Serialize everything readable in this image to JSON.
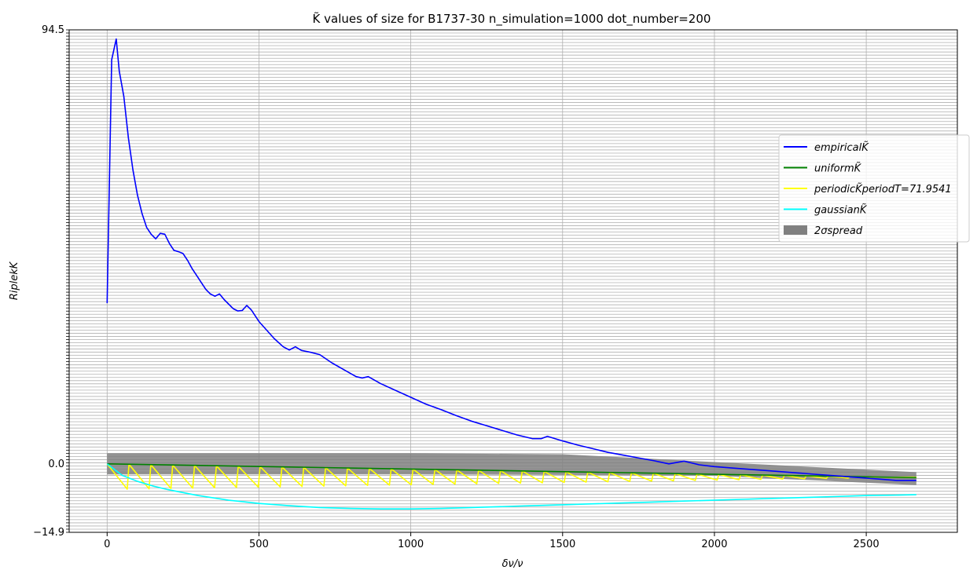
{
  "chart_data": {
    "type": "line",
    "title": "K̃ values of size for B1737-30 n_simulation=1000 dot_number=200",
    "xlabel": "δν/ν",
    "ylabel": "RiplekK",
    "xlim": [
      -125,
      2800
    ],
    "ylim": [
      -14.9,
      94.5
    ],
    "x_ticks": [
      0,
      500,
      1000,
      1500,
      2000,
      2500
    ],
    "x_tick_labels": [
      "0",
      "500",
      "1000",
      "1500",
      "2000",
      "2500"
    ],
    "y_tick_labels": [
      "94.5",
      "0.0",
      "−14.9"
    ],
    "grid": true,
    "legend_position": "right",
    "colors": {
      "empirical": "#0000ff",
      "uniform": "#008000",
      "periodic": "#ffff00",
      "gaussian": "#00ffff",
      "spread": "#808080",
      "grid": "#b0b0b0"
    },
    "series": [
      {
        "name": "empiricalK̃",
        "color": "#0000ff",
        "x": [
          0,
          15,
          30,
          40,
          55,
          70,
          85,
          100,
          115,
          130,
          145,
          160,
          175,
          190,
          205,
          220,
          235,
          250,
          265,
          280,
          295,
          310,
          325,
          340,
          355,
          370,
          385,
          400,
          415,
          430,
          445,
          460,
          475,
          500,
          550,
          580,
          600,
          620,
          640,
          670,
          700,
          740,
          780,
          820,
          840,
          860,
          900,
          950,
          1000,
          1050,
          1100,
          1150,
          1200,
          1250,
          1300,
          1350,
          1400,
          1430,
          1450,
          1500,
          1550,
          1600,
          1650,
          1700,
          1750,
          1800,
          1850,
          1900,
          1950,
          2000,
          2100,
          2200,
          2300,
          2400,
          2500,
          2600,
          2665
        ],
        "values": [
          35.0,
          88.0,
          92.5,
          85.5,
          80.0,
          71.0,
          64.0,
          58.5,
          54.5,
          51.5,
          50.0,
          49.0,
          50.2,
          50.0,
          48.0,
          46.5,
          46.2,
          45.8,
          44.3,
          42.5,
          41.0,
          39.5,
          38.0,
          37.0,
          36.5,
          37.0,
          35.8,
          34.8,
          33.8,
          33.3,
          33.4,
          34.5,
          33.5,
          31.0,
          27.3,
          25.5,
          24.8,
          25.5,
          24.7,
          24.3,
          23.8,
          22.0,
          20.5,
          19.0,
          18.7,
          19.0,
          17.5,
          16.0,
          14.5,
          13.0,
          11.8,
          10.5,
          9.3,
          8.3,
          7.3,
          6.3,
          5.5,
          5.5,
          6.0,
          5.0,
          4.1,
          3.3,
          2.5,
          1.9,
          1.3,
          0.7,
          0.0,
          0.6,
          -0.2,
          -0.6,
          -1.1,
          -1.6,
          -2.1,
          -2.6,
          -3.1,
          -3.6,
          -3.6
        ]
      },
      {
        "name": "uniformK̃",
        "color": "#008000",
        "x": [
          0,
          2665
        ],
        "values": [
          0.0,
          -3.0
        ]
      },
      {
        "name": "periodicK̃periodT=71.9541",
        "color": "#ffff00",
        "period": 71.9541,
        "x0": 0,
        "x1": 2665,
        "trough_start": -5.5,
        "trough_end": -2.8,
        "envelope_start": 0.0,
        "envelope_end": -3.0
      },
      {
        "name": "gaussianK̃",
        "color": "#00ffff",
        "x": [
          0,
          50,
          100,
          150,
          200,
          300,
          400,
          500,
          600,
          700,
          800,
          900,
          1000,
          1100,
          1200,
          1300,
          1400,
          1500,
          1600,
          1700,
          1800,
          1900,
          2000,
          2100,
          2200,
          2300,
          2400,
          2500,
          2600,
          2665
        ],
        "values": [
          0.0,
          -2.5,
          -3.8,
          -4.8,
          -5.6,
          -6.9,
          -7.9,
          -8.6,
          -9.1,
          -9.5,
          -9.7,
          -9.8,
          -9.8,
          -9.7,
          -9.5,
          -9.3,
          -9.1,
          -8.9,
          -8.7,
          -8.5,
          -8.3,
          -8.1,
          -7.9,
          -7.7,
          -7.5,
          -7.3,
          -7.1,
          -6.9,
          -6.8,
          -6.7
        ]
      }
    ],
    "spread_band": {
      "name": "2σspread",
      "color": "#808080",
      "x": [
        0,
        500,
        1000,
        1500,
        2000,
        2665
      ],
      "lower": [
        -2.3,
        -2.3,
        -2.3,
        -2.4,
        -2.6,
        -4.6
      ],
      "upper": [
        2.3,
        2.3,
        2.3,
        2.1,
        0.4,
        -1.8
      ]
    },
    "legend": [
      {
        "label": "empiricalK̃",
        "color": "#0000ff",
        "kind": "line"
      },
      {
        "label": "uniformK̃",
        "color": "#008000",
        "kind": "line"
      },
      {
        "label": "periodicK̃periodT=71.9541",
        "color": "#ffff00",
        "kind": "line"
      },
      {
        "label": "gaussianK̃",
        "color": "#00ffff",
        "kind": "line"
      },
      {
        "label": "2σspread",
        "color": "#808080",
        "kind": "patch"
      }
    ]
  }
}
